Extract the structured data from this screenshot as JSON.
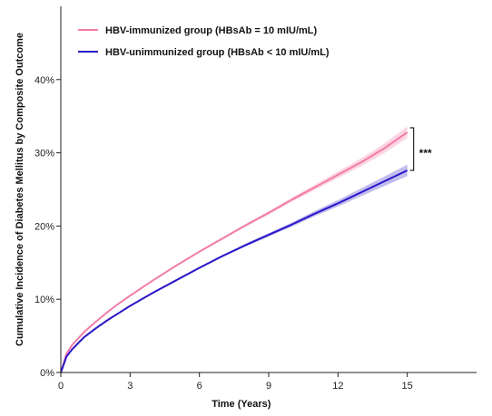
{
  "chart_data": {
    "type": "line",
    "xlabel": "Time (Years)",
    "ylabel": "Cumulative Incidence of Diabetes Mellitus by Composite Outcome",
    "xlim": [
      0,
      18
    ],
    "ylim": [
      0,
      50
    ],
    "x_ticks": [
      0,
      3,
      6,
      9,
      12,
      15
    ],
    "y_ticks": [
      0,
      10,
      20,
      30,
      40
    ],
    "y_tick_labels": [
      "0%",
      "10%",
      "20%",
      "30%",
      "40%"
    ],
    "legend_position": "top-left",
    "series": [
      {
        "name": "HBV-immunized group (HBsAb = 10 mIU/mL)",
        "color": "#f27ca8",
        "band_color": "#f7b3cc",
        "x": [
          0,
          0.25,
          0.5,
          1,
          1.5,
          2,
          2.5,
          3,
          4,
          5,
          6,
          7,
          8,
          9,
          10,
          11,
          12,
          13,
          14,
          15
        ],
        "y": [
          0,
          2.6,
          3.8,
          5.5,
          6.9,
          8.2,
          9.4,
          10.5,
          12.6,
          14.6,
          16.5,
          18.3,
          20.1,
          21.8,
          23.6,
          25.3,
          27.0,
          28.7,
          30.6,
          32.8
        ]
      },
      {
        "name": "HBV-unimmunized group (HBsAb < 10 mIU/mL)",
        "color": "#2a16c8",
        "band_color": "#8f86e0",
        "x": [
          0,
          0.25,
          0.5,
          1,
          1.5,
          2,
          2.5,
          3,
          4,
          5,
          6,
          7,
          8,
          9,
          10,
          11,
          12,
          13,
          14,
          15
        ],
        "y": [
          0,
          2.2,
          3.2,
          4.8,
          6.0,
          7.1,
          8.1,
          9.1,
          10.9,
          12.6,
          14.3,
          15.9,
          17.4,
          18.8,
          20.2,
          21.7,
          23.1,
          24.6,
          26.1,
          27.6
        ]
      }
    ],
    "annotation": "***"
  }
}
